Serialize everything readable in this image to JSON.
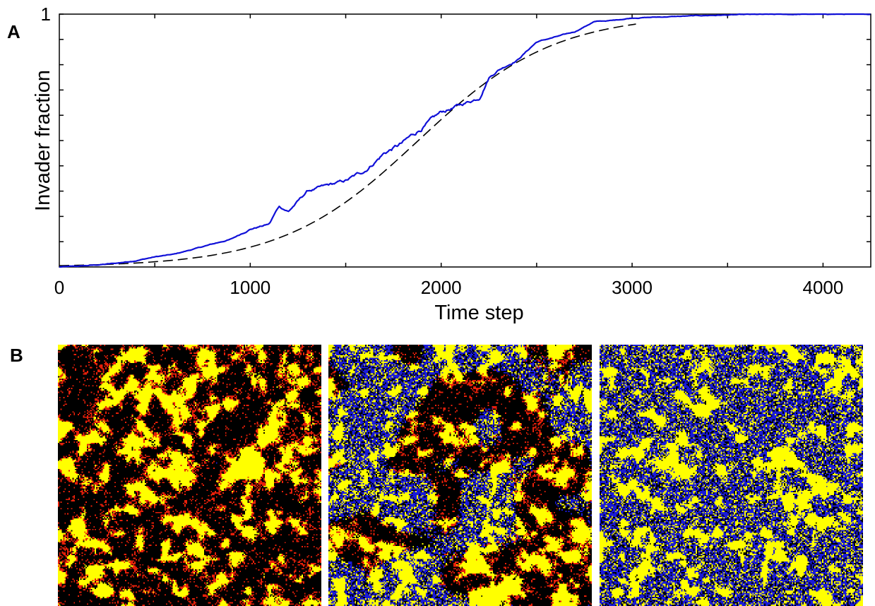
{
  "panel_labels": {
    "a": "A",
    "b": "B"
  },
  "chart_data": {
    "type": "line",
    "title": "",
    "xlabel": "Time step",
    "ylabel": "Invader fraction",
    "xlim": [
      0,
      4250
    ],
    "ylim": [
      0,
      1
    ],
    "x_ticks": [
      0,
      1000,
      2000,
      3000,
      4000
    ],
    "y_tick_labels": [
      {
        "value": 1,
        "label": "1"
      }
    ],
    "y_minor_ticks": [
      0.1,
      0.2,
      0.3,
      0.4,
      0.5,
      0.6,
      0.7,
      0.8,
      0.9,
      1.0
    ],
    "x_minor_ticks": [
      500,
      1000,
      1500,
      2000,
      2500,
      3000,
      3500,
      4000
    ],
    "grid": false,
    "series": [
      {
        "kind": "simulation",
        "color": "#1010d8",
        "x": [
          0,
          100,
          200,
          300,
          400,
          500,
          600,
          700,
          800,
          900,
          1000,
          1100,
          1150,
          1200,
          1300,
          1350,
          1400,
          1500,
          1600,
          1700,
          1750,
          1800,
          1850,
          1900,
          2000,
          2100,
          2200,
          2250,
          2300,
          2400,
          2500,
          2600,
          2700,
          2800,
          2900,
          3000,
          3200,
          3400,
          3600,
          3800,
          4000,
          4250
        ],
        "y": [
          0.0,
          0.003,
          0.008,
          0.015,
          0.025,
          0.04,
          0.05,
          0.07,
          0.09,
          0.11,
          0.15,
          0.17,
          0.24,
          0.22,
          0.3,
          0.31,
          0.32,
          0.34,
          0.38,
          0.45,
          0.47,
          0.49,
          0.52,
          0.55,
          0.61,
          0.64,
          0.67,
          0.75,
          0.78,
          0.82,
          0.89,
          0.91,
          0.93,
          0.97,
          0.975,
          0.985,
          0.99,
          0.995,
          0.998,
          0.999,
          1.0,
          1.0
        ]
      },
      {
        "kind": "fit",
        "color": "#000000",
        "dashed": true,
        "logistic": {
          "midpoint": 1880,
          "rate": 0.0028
        },
        "x_end": 3020
      }
    ]
  },
  "snapshots": {
    "grid_size": 200,
    "colors": {
      "background": "#000000",
      "resident": "#ffff00",
      "resident_edge": "#e8200a",
      "invader": "#1a1ad8"
    },
    "items": [
      {
        "invader_fraction": 0.005
      },
      {
        "invader_fraction": 0.5
      },
      {
        "invader_fraction": 0.97
      }
    ]
  }
}
